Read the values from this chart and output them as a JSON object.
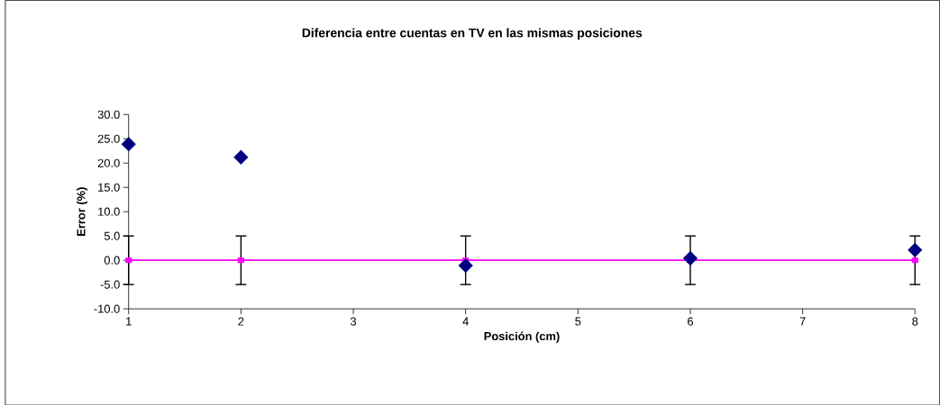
{
  "chart_data": {
    "type": "scatter",
    "title": "Diferencia entre cuentas en TV en las mismas posiciones",
    "xlabel": "Posición (cm)",
    "ylabel": "Error (%)",
    "x": [
      1,
      2,
      4,
      6,
      8
    ],
    "series": [
      {
        "type": "line",
        "color": "#ff00ff",
        "marker": "square",
        "values": [
          0,
          0,
          0,
          0,
          0
        ],
        "errors": [
          5,
          5,
          5,
          5,
          5
        ]
      },
      {
        "color": "#000080",
        "marker": "diamond",
        "values": [
          23.9,
          21.2,
          -1.1,
          0.4,
          2.1
        ]
      }
    ],
    "xlim": [
      1,
      8
    ],
    "xticks": [
      1,
      2,
      3,
      4,
      5,
      6,
      7,
      8
    ],
    "ylim": [
      -10,
      30
    ],
    "yticks": [
      {
        "value": -10,
        "label": "-10.0"
      },
      {
        "value": -5,
        "label": "-5.0"
      },
      {
        "value": 0,
        "label": "0.0"
      },
      {
        "value": 5,
        "label": "5.0"
      },
      {
        "value": 10,
        "label": "10.0"
      },
      {
        "value": 15,
        "label": "15.0"
      },
      {
        "value": 20,
        "label": "20.0"
      },
      {
        "value": 25,
        "label": "25.0"
      },
      {
        "value": 30,
        "label": "30.0"
      }
    ]
  }
}
